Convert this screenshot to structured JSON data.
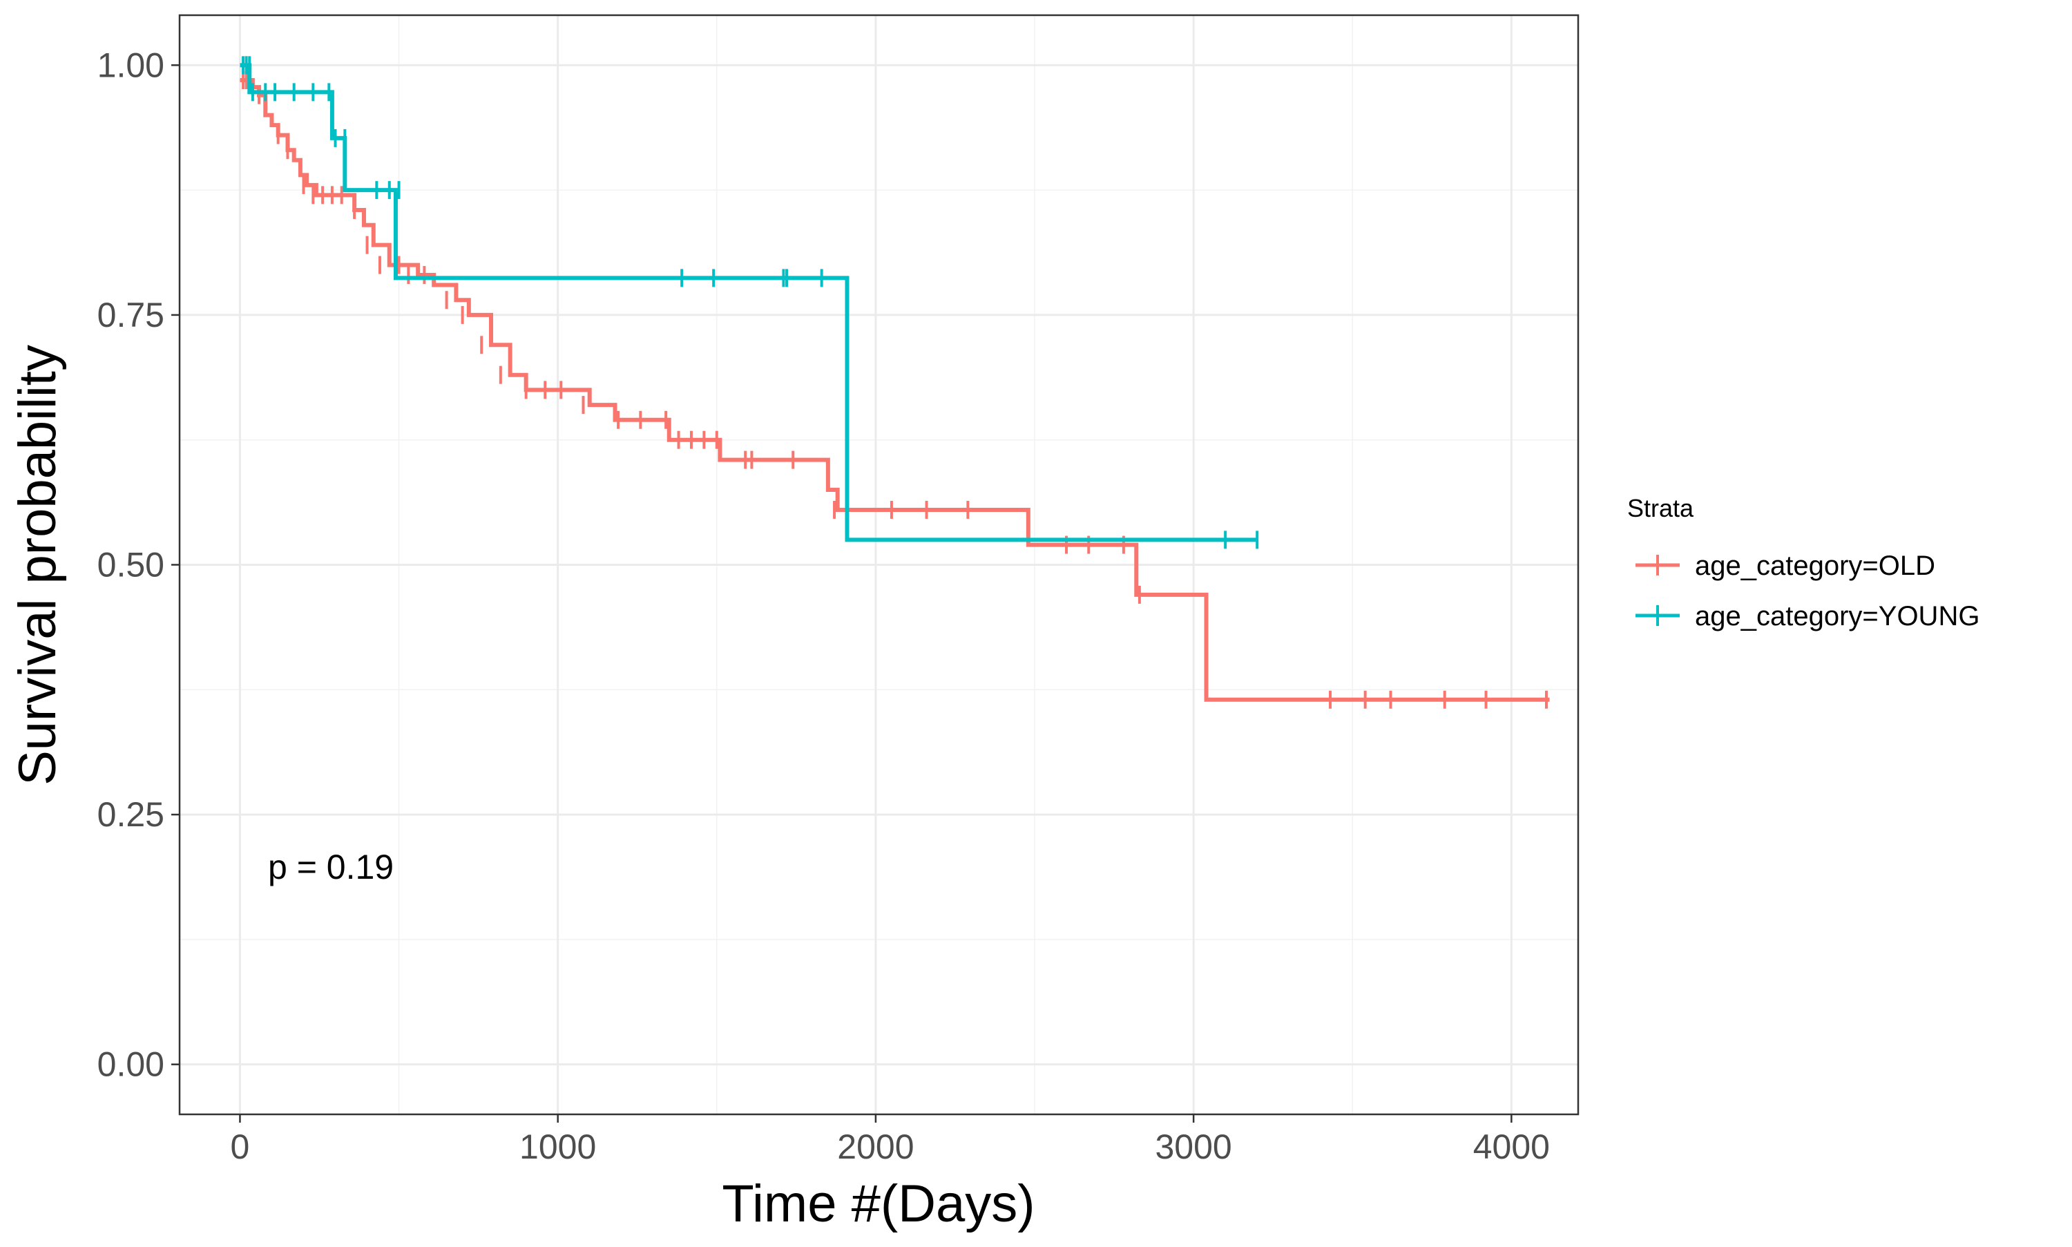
{
  "chart_data": {
    "type": "line",
    "title": "",
    "xlabel": "Time #(Days)",
    "ylabel": "Survival probability",
    "xlim": [
      -190,
      4210
    ],
    "ylim": [
      -0.05,
      1.05
    ],
    "x_ticks": [
      0,
      1000,
      2000,
      3000,
      4000
    ],
    "x_tick_labels": [
      "0",
      "1000",
      "2000",
      "3000",
      "4000"
    ],
    "y_ticks": [
      0,
      0.25,
      0.5,
      0.75,
      1.0
    ],
    "y_tick_labels": [
      "0.00",
      "0.25",
      "0.50",
      "0.75",
      "1.00"
    ],
    "grid": true,
    "legend": {
      "title": "Strata",
      "position": "right"
    },
    "annotation": "p = 0.19",
    "series": [
      {
        "name": "age_category=OLD",
        "color": "#F8766D",
        "x": [
          0,
          40,
          60,
          80,
          100,
          120,
          150,
          170,
          190,
          210,
          240,
          360,
          390,
          420,
          470,
          560,
          610,
          680,
          720,
          790,
          850,
          900,
          1100,
          1180,
          1350,
          1510,
          1850,
          1880,
          2480,
          2820,
          3040,
          4120
        ],
        "y": [
          0.985,
          0.978,
          0.97,
          0.95,
          0.94,
          0.93,
          0.915,
          0.905,
          0.89,
          0.88,
          0.87,
          0.855,
          0.84,
          0.82,
          0.8,
          0.79,
          0.78,
          0.765,
          0.75,
          0.72,
          0.69,
          0.675,
          0.66,
          0.645,
          0.625,
          0.605,
          0.575,
          0.555,
          0.52,
          0.47,
          0.365,
          0.365
        ],
        "censor_x": [
          10,
          20,
          30,
          40,
          60,
          120,
          150,
          200,
          230,
          260,
          290,
          320,
          360,
          400,
          440,
          500,
          530,
          580,
          650,
          700,
          760,
          820,
          900,
          960,
          1010,
          1080,
          1190,
          1260,
          1340,
          1380,
          1420,
          1460,
          1500,
          1590,
          1610,
          1740,
          1870,
          2050,
          2160,
          2290,
          2600,
          2670,
          2780,
          2830,
          3430,
          3540,
          3620,
          3790,
          3920,
          4110
        ],
        "censor_y": [
          0.985,
          0.985,
          0.985,
          0.978,
          0.97,
          0.93,
          0.915,
          0.88,
          0.87,
          0.87,
          0.87,
          0.87,
          0.855,
          0.82,
          0.8,
          0.8,
          0.79,
          0.79,
          0.765,
          0.75,
          0.72,
          0.69,
          0.675,
          0.675,
          0.675,
          0.66,
          0.645,
          0.645,
          0.645,
          0.625,
          0.625,
          0.625,
          0.625,
          0.605,
          0.605,
          0.605,
          0.555,
          0.555,
          0.555,
          0.555,
          0.52,
          0.52,
          0.52,
          0.47,
          0.365,
          0.365,
          0.365,
          0.365,
          0.365,
          0.365
        ]
      },
      {
        "name": "age_category=YOUNG",
        "color": "#00BFC4",
        "x": [
          0,
          30,
          290,
          330,
          490,
          1910,
          3200
        ],
        "y": [
          1.0,
          0.973,
          0.927,
          0.875,
          0.787,
          0.525,
          0.525
        ],
        "censor_x": [
          10,
          20,
          30,
          40,
          80,
          110,
          170,
          230,
          280,
          300,
          330,
          430,
          470,
          500,
          1390,
          1490,
          1710,
          1720,
          1830,
          3100,
          3200
        ],
        "censor_y": [
          1.0,
          1.0,
          1.0,
          0.973,
          0.973,
          0.973,
          0.973,
          0.973,
          0.973,
          0.927,
          0.927,
          0.875,
          0.875,
          0.875,
          0.787,
          0.787,
          0.787,
          0.787,
          0.787,
          0.525,
          0.525
        ]
      }
    ]
  }
}
